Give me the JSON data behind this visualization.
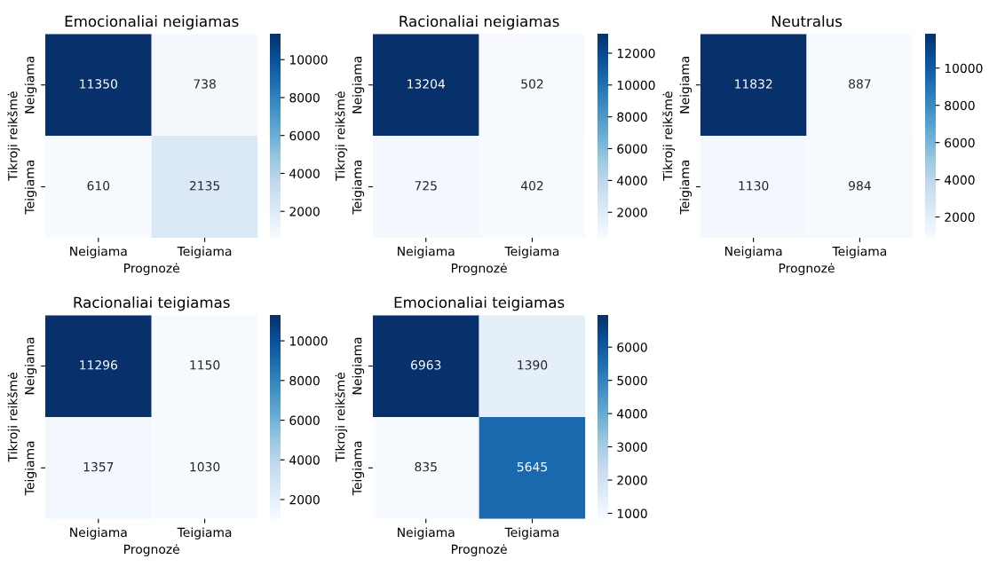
{
  "chart_data": [
    {
      "type": "heatmap",
      "title": "Emocionaliai neigiamas",
      "xlabel": "Prognozė",
      "ylabel": "Tikroji reikšmė",
      "categories": [
        "Neigiama",
        "Teigiama"
      ],
      "y_categories": [
        "Neigiama",
        "Teigiama"
      ],
      "cells": [
        [
          11350,
          738
        ],
        [
          610,
          2135
        ]
      ],
      "clim": [
        610,
        11350
      ],
      "cticks": [
        2000,
        4000,
        6000,
        8000,
        10000
      ],
      "data_labels": true
    },
    {
      "type": "heatmap",
      "title": "Racionaliai neigiamas",
      "xlabel": "Prognozė",
      "ylabel": "Tikroji reikšmė",
      "categories": [
        "Neigiama",
        "Teigiama"
      ],
      "y_categories": [
        "Neigiama",
        "Teigiama"
      ],
      "cells": [
        [
          13204,
          502
        ],
        [
          725,
          402
        ]
      ],
      "clim": [
        402,
        13204
      ],
      "cticks": [
        2000,
        4000,
        6000,
        8000,
        10000,
        12000
      ],
      "data_labels": true
    },
    {
      "type": "heatmap",
      "title": "Neutralus",
      "xlabel": "Prognozė",
      "ylabel": "Tikroji reikšmė",
      "categories": [
        "Neigiama",
        "Teigiama"
      ],
      "y_categories": [
        "Neigiama",
        "Teigiama"
      ],
      "cells": [
        [
          11832,
          887
        ],
        [
          1130,
          984
        ]
      ],
      "clim": [
        887,
        11832
      ],
      "cticks": [
        2000,
        4000,
        6000,
        8000,
        10000
      ],
      "data_labels": true
    },
    {
      "type": "heatmap",
      "title": "Racionaliai teigiamas",
      "xlabel": "Prognozė",
      "ylabel": "Tikroji reikšmė",
      "categories": [
        "Neigiama",
        "Teigiama"
      ],
      "y_categories": [
        "Neigiama",
        "Teigiama"
      ],
      "cells": [
        [
          11296,
          1150
        ],
        [
          1357,
          1030
        ]
      ],
      "clim": [
        1030,
        11296
      ],
      "cticks": [
        2000,
        4000,
        6000,
        8000,
        10000
      ],
      "data_labels": true
    },
    {
      "type": "heatmap",
      "title": "Emocionaliai teigiamas",
      "xlabel": "Prognozė",
      "ylabel": "Tikroji reikšmė",
      "categories": [
        "Neigiama",
        "Teigiama"
      ],
      "y_categories": [
        "Neigiama",
        "Teigiama"
      ],
      "cells": [
        [
          6963,
          1390
        ],
        [
          835,
          5645
        ]
      ],
      "clim": [
        835,
        6963
      ],
      "cticks": [
        1000,
        2000,
        3000,
        4000,
        5000,
        6000
      ],
      "data_labels": true
    }
  ]
}
